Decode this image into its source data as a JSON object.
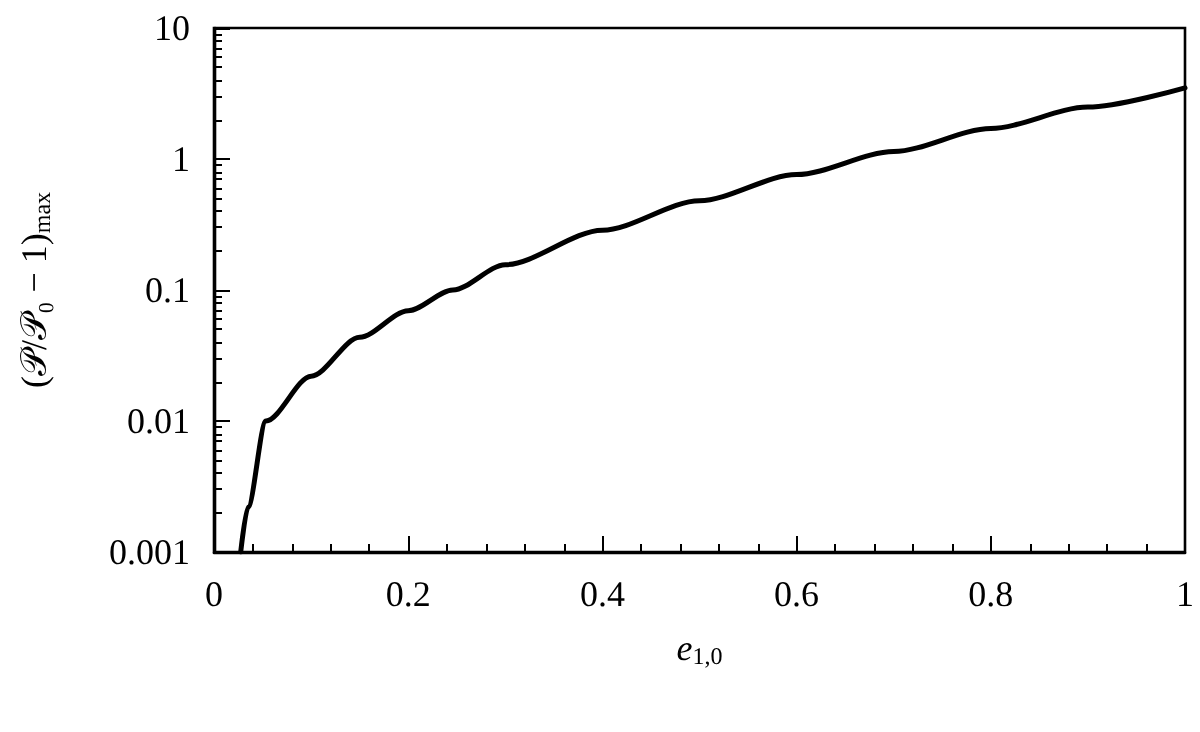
{
  "chart_data": {
    "type": "line",
    "xlabel": "e$_{1,0}$",
    "ylabel": "(𝒫/𝒫₀ − 1)$_{max}$",
    "series": [
      {
        "color": "#000000",
        "x": [
          0.0275,
          0.035,
          0.0535,
          0.1,
          0.15,
          0.2,
          0.246,
          0.3,
          0.4,
          0.5,
          0.6,
          0.7,
          0.8,
          0.9,
          1
        ],
        "values": [
          0.001,
          0.0022,
          0.01,
          0.022,
          0.0436,
          0.0695,
          0.1,
          0.156,
          0.286,
          0.48,
          0.76,
          1.14,
          1.71,
          2.49,
          3.49
        ]
      }
    ],
    "xlim": [
      0,
      1
    ],
    "xticks": [
      0,
      0.2,
      0.4,
      0.6,
      0.8,
      1
    ],
    "ylim": [
      0.001,
      10
    ],
    "yticks": [
      0.001,
      0.01,
      0.1,
      1,
      10
    ],
    "log": "y",
    "grid": false,
    "marker": "none",
    "line_style": "solid"
  }
}
